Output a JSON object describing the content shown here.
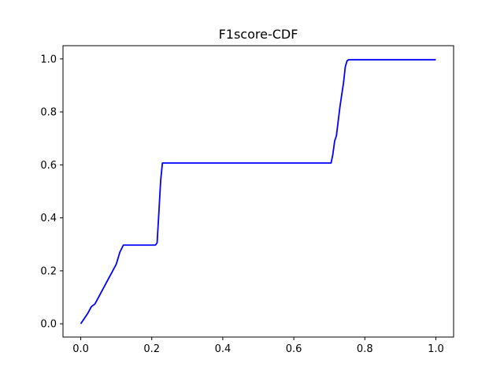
{
  "chart_data": {
    "type": "line",
    "title": "F1score-CDF",
    "xlabel": "",
    "ylabel": "",
    "xlim": [
      -0.05,
      1.05
    ],
    "ylim": [
      -0.05,
      1.05
    ],
    "xticks": [
      0.0,
      0.2,
      0.4,
      0.6,
      0.8,
      1.0
    ],
    "yticks": [
      0.0,
      0.2,
      0.4,
      0.6,
      0.8,
      1.0
    ],
    "xtick_labels": [
      "0.0",
      "0.2",
      "0.4",
      "0.6",
      "0.8",
      "1.0"
    ],
    "ytick_labels": [
      "0.0",
      "0.2",
      "0.4",
      "0.6",
      "0.8",
      "1.0"
    ],
    "grid": false,
    "legend": "none",
    "series": [
      {
        "color": "#0000ff",
        "x": [
          0.0,
          0.01,
          0.02,
          0.03,
          0.04,
          0.05,
          0.06,
          0.07,
          0.08,
          0.09,
          0.1,
          0.11,
          0.12,
          0.13,
          0.16,
          0.2,
          0.21,
          0.215,
          0.22,
          0.225,
          0.23,
          0.4,
          0.6,
          0.705,
          0.71,
          0.715,
          0.72,
          0.73,
          0.74,
          0.745,
          0.75,
          0.755,
          0.76,
          0.8,
          1.0
        ],
        "y": [
          0.0,
          0.02,
          0.04,
          0.065,
          0.075,
          0.1,
          0.125,
          0.15,
          0.175,
          0.2,
          0.225,
          0.27,
          0.297,
          0.297,
          0.297,
          0.297,
          0.297,
          0.305,
          0.42,
          0.54,
          0.607,
          0.607,
          0.607,
          0.607,
          0.64,
          0.69,
          0.71,
          0.82,
          0.91,
          0.97,
          0.993,
          0.997,
          0.997,
          0.997,
          0.997
        ]
      }
    ]
  }
}
